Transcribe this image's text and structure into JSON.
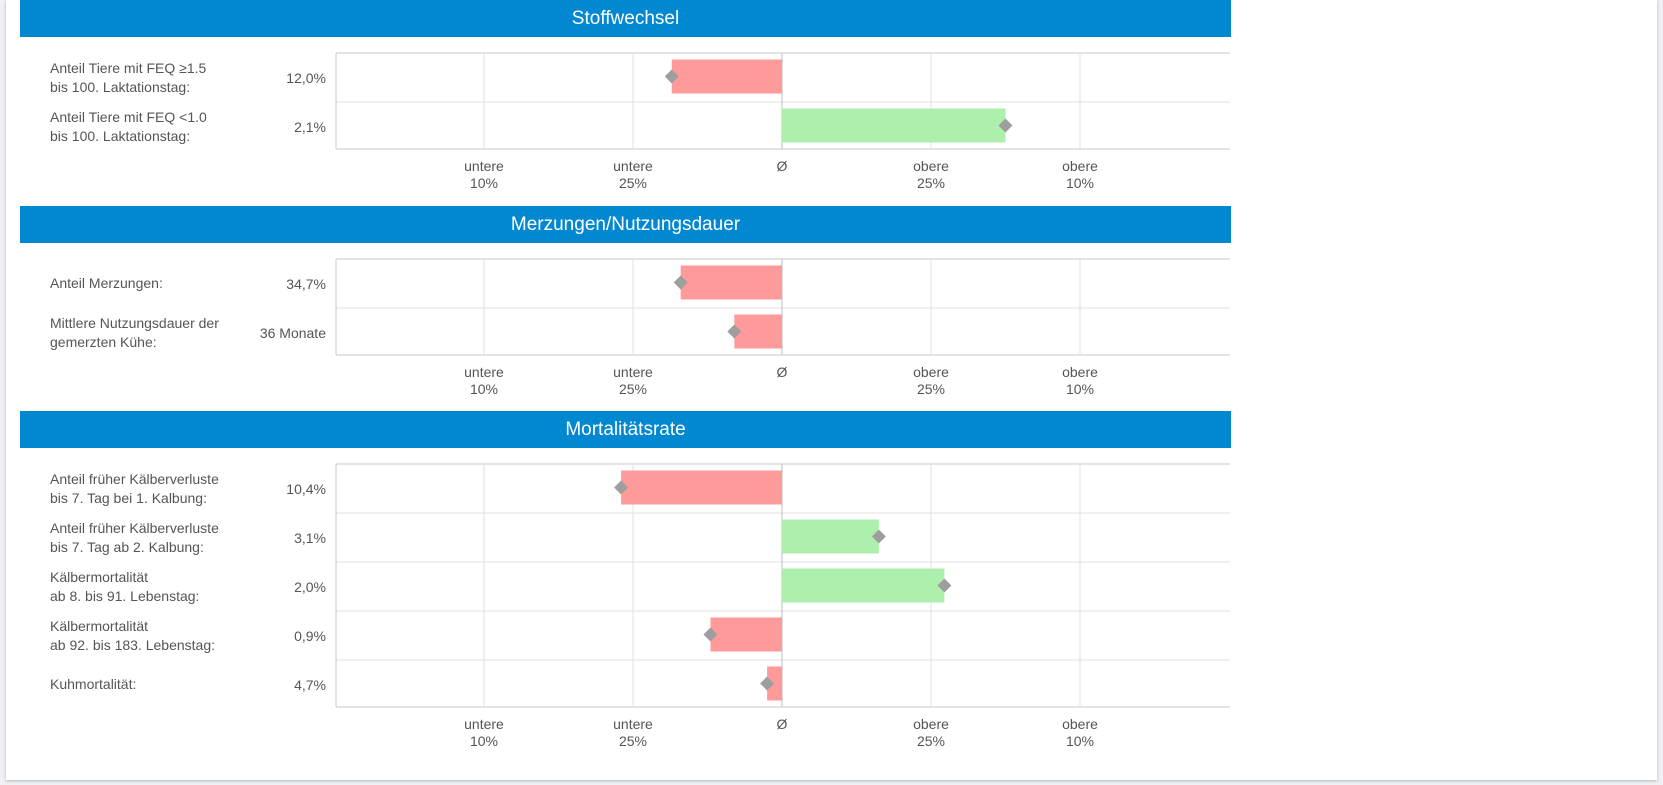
{
  "colors": {
    "header": "#0288d1",
    "negative_bar": "#ff9a9a",
    "positive_bar": "#adf0ad",
    "marker": "#9e9e9e",
    "grid": "#d8d8d8"
  },
  "axis_ticks": [
    {
      "line1": "untere",
      "line2": "10%"
    },
    {
      "line1": "untere",
      "line2": "25%"
    },
    {
      "line1": "Ø",
      "line2": ""
    },
    {
      "line1": "obere",
      "line2": "25%"
    },
    {
      "line1": "obere",
      "line2": "10%"
    }
  ],
  "chart_data": [
    {
      "type": "bar",
      "title": "Stoffwechsel",
      "rows": [
        {
          "label_line1": "Anteil Tiere mit FEQ ≥1.5",
          "label_line2": "bis 100. Laktationstag:",
          "value_text": "12,0%",
          "position": -0.74,
          "rating": "negative"
        },
        {
          "label_line1": "Anteil Tiere mit FEQ <1.0",
          "label_line2": "bis 100. Laktationstag:",
          "value_text": "2,1%",
          "position": 1.5,
          "rating": "positive"
        }
      ]
    },
    {
      "type": "bar",
      "title": "Merzungen/Nutzungsdauer",
      "rows": [
        {
          "label_line1": "Anteil Merzungen:",
          "label_line2": "",
          "value_text": "34,7%",
          "position": -0.68,
          "rating": "negative"
        },
        {
          "label_line1": "Mittlere Nutzungsdauer der",
          "label_line2": "gemerzten Kühe:",
          "value_text": "36 Monate",
          "position": -0.32,
          "rating": "negative"
        }
      ]
    },
    {
      "type": "bar",
      "title": "Mortalitätsrate",
      "rows": [
        {
          "label_line1": "Anteil früher Kälberverluste",
          "label_line2": "bis 7. Tag bei 1. Kalbung:",
          "value_text": "10,4%",
          "position": -1.08,
          "rating": "negative"
        },
        {
          "label_line1": "Anteil früher Kälberverluste",
          "label_line2": "bis 7. Tag ab 2. Kalbung:",
          "value_text": "3,1%",
          "position": 0.65,
          "rating": "positive"
        },
        {
          "label_line1": "Kälbermortalität",
          "label_line2": "ab 8. bis 91. Lebenstag:",
          "value_text": "2,0%",
          "position": 1.09,
          "rating": "positive"
        },
        {
          "label_line1": "Kälbermortalität",
          "label_line2": "ab 92. bis 183. Lebenstag:",
          "value_text": "0,9%",
          "position": -0.48,
          "rating": "negative"
        },
        {
          "label_line1": "Kuhmortalität:",
          "label_line2": "",
          "value_text": "4,7%",
          "position": -0.1,
          "rating": "negative"
        }
      ]
    }
  ]
}
